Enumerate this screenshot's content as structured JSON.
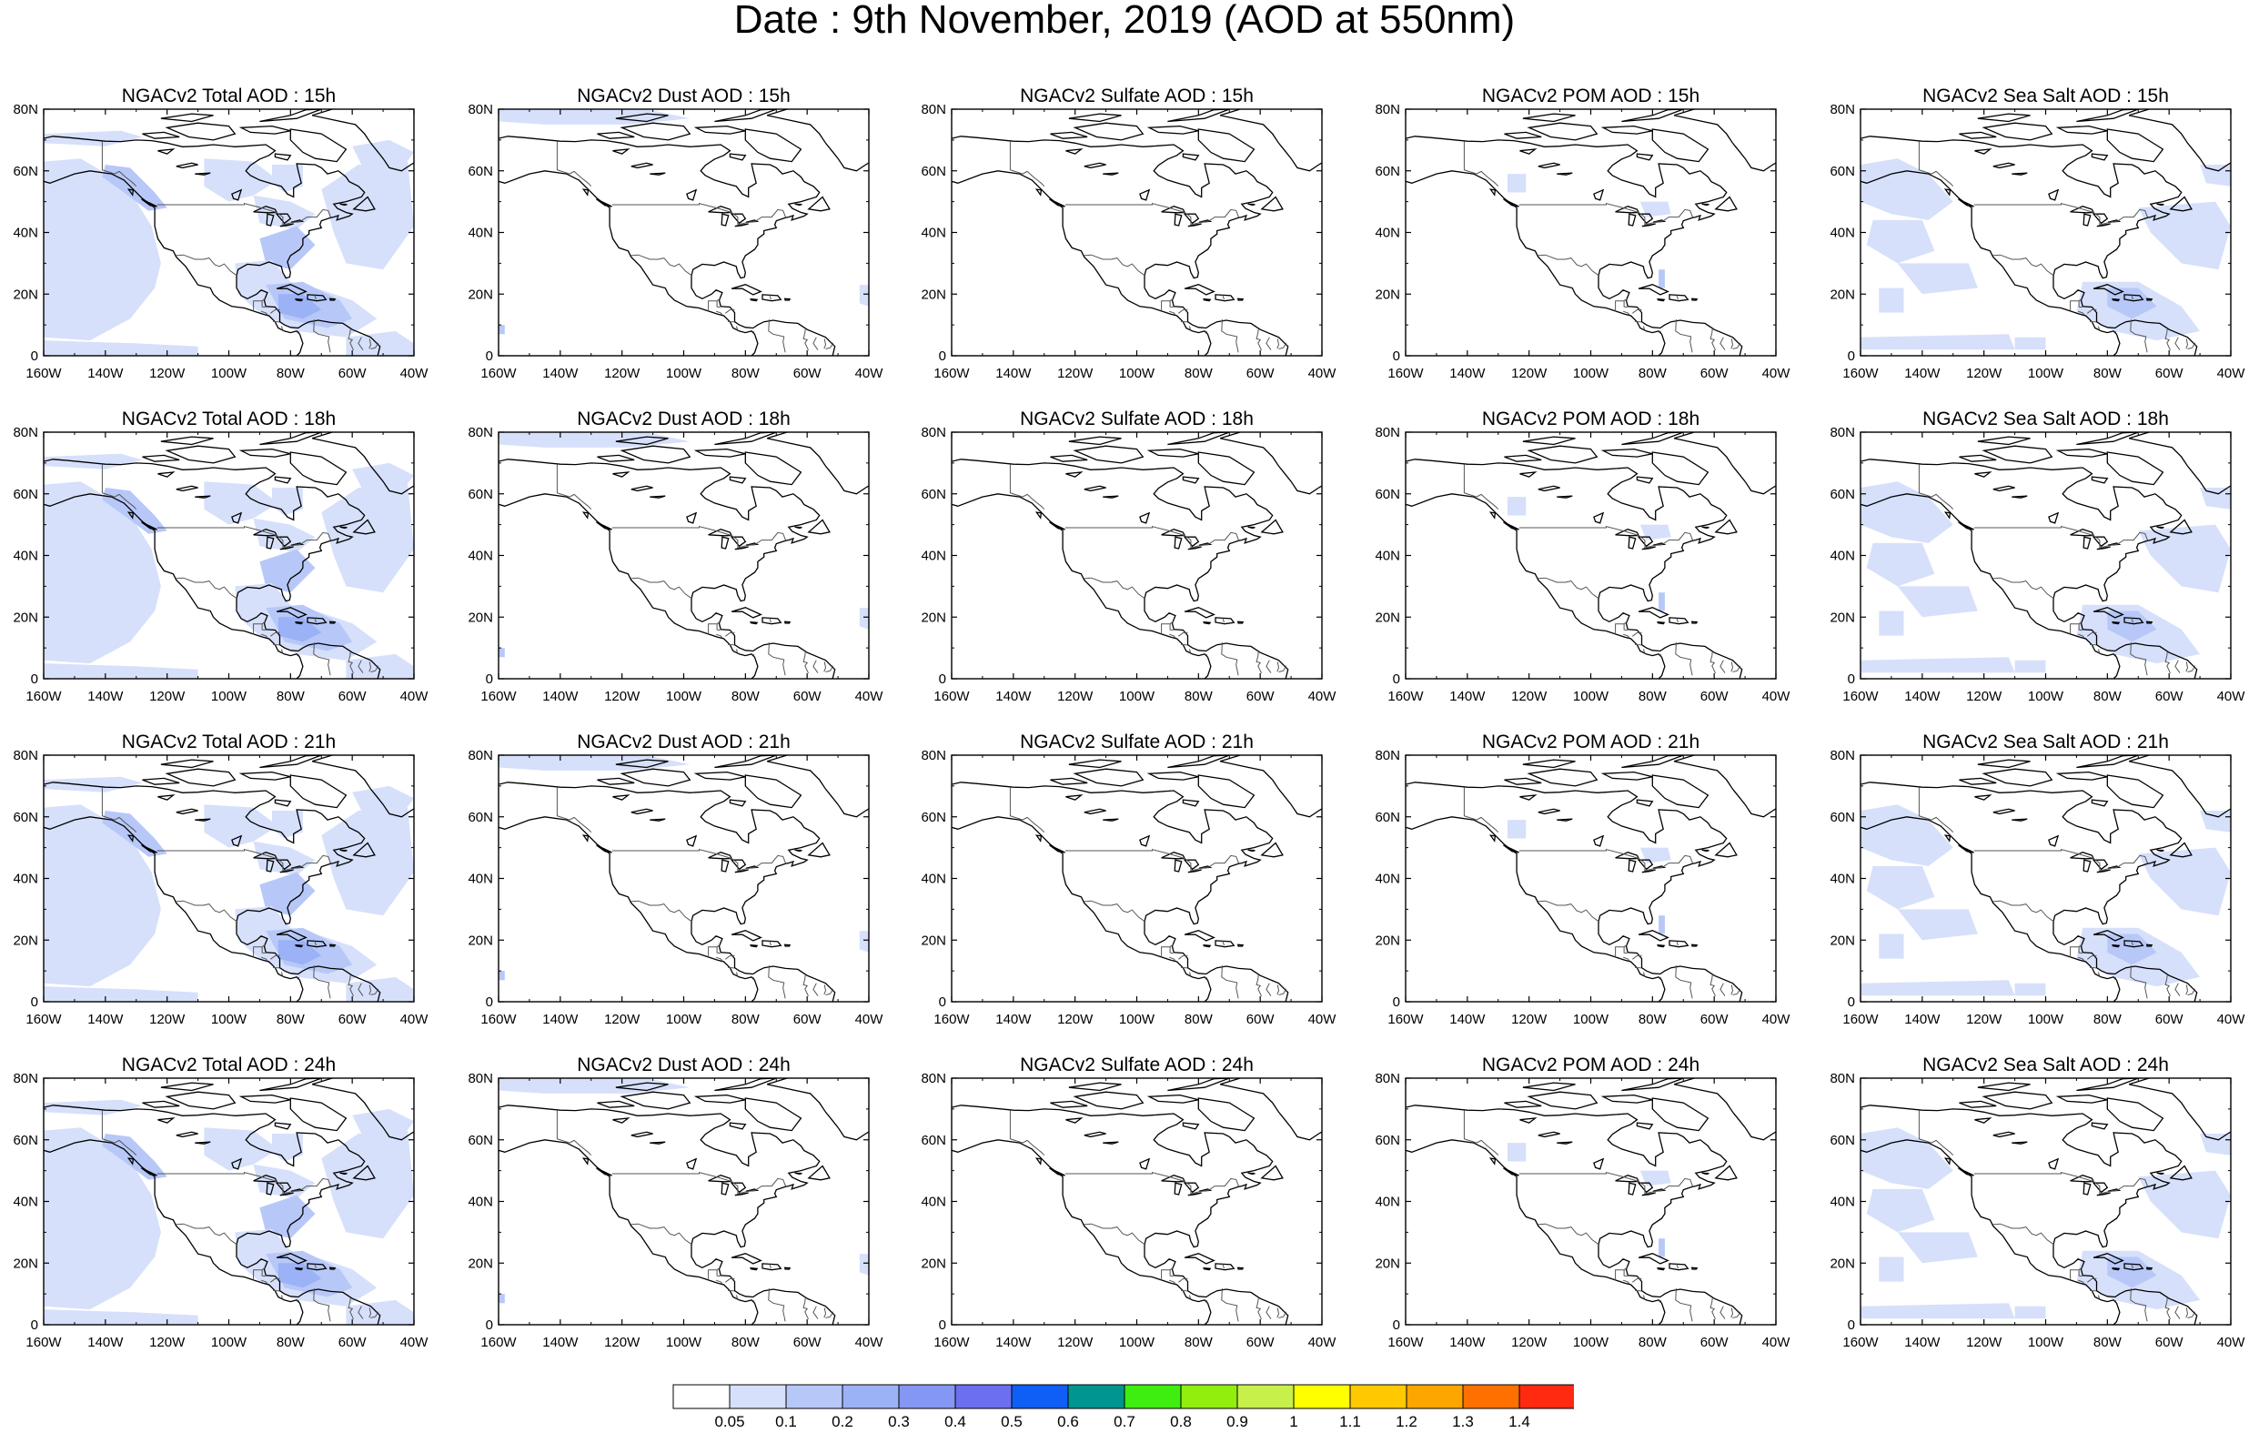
{
  "title": "Date : 9th November, 2019 (AOD at 550nm)",
  "lat_ticks": [
    "80N",
    "60N",
    "40N",
    "20N",
    "0"
  ],
  "lon_ticks": [
    "160W",
    "140W",
    "120W",
    "100W",
    "80W",
    "60W",
    "40W"
  ],
  "panels": [
    {
      "title": "NGACv2 Total AOD : 15h",
      "species": "total",
      "hour": 15
    },
    {
      "title": "NGACv2 Dust AOD : 15h",
      "species": "dust",
      "hour": 15
    },
    {
      "title": "NGACv2 Sulfate AOD : 15h",
      "species": "sulfate",
      "hour": 15
    },
    {
      "title": "NGACv2 POM AOD : 15h",
      "species": "pom",
      "hour": 15
    },
    {
      "title": "NGACv2 Sea Salt AOD : 15h",
      "species": "seasalt",
      "hour": 15
    },
    {
      "title": "NGACv2 Total AOD : 18h",
      "species": "total",
      "hour": 18
    },
    {
      "title": "NGACv2 Dust AOD : 18h",
      "species": "dust",
      "hour": 18
    },
    {
      "title": "NGACv2 Sulfate AOD : 18h",
      "species": "sulfate",
      "hour": 18
    },
    {
      "title": "NGACv2 POM AOD : 18h",
      "species": "pom",
      "hour": 18
    },
    {
      "title": "NGACv2 Sea Salt AOD : 18h",
      "species": "seasalt",
      "hour": 18
    },
    {
      "title": "NGACv2 Total AOD : 21h",
      "species": "total",
      "hour": 21
    },
    {
      "title": "NGACv2 Dust AOD : 21h",
      "species": "dust",
      "hour": 21
    },
    {
      "title": "NGACv2 Sulfate AOD : 21h",
      "species": "sulfate",
      "hour": 21
    },
    {
      "title": "NGACv2 POM AOD : 21h",
      "species": "pom",
      "hour": 21
    },
    {
      "title": "NGACv2 Sea Salt AOD : 21h",
      "species": "seasalt",
      "hour": 21
    },
    {
      "title": "NGACv2 Total AOD : 24h",
      "species": "total",
      "hour": 24
    },
    {
      "title": "NGACv2 Dust AOD : 24h",
      "species": "dust",
      "hour": 24
    },
    {
      "title": "NGACv2 Sulfate AOD : 24h",
      "species": "sulfate",
      "hour": 24
    },
    {
      "title": "NGACv2 POM AOD : 24h",
      "species": "pom",
      "hour": 24
    },
    {
      "title": "NGACv2 Sea Salt  AOD : 24h",
      "species": "seasalt",
      "hour": 24
    }
  ],
  "colorbar": {
    "colors": [
      "#ffffff",
      "#d6e0fb",
      "#b7c8f8",
      "#9bb2f6",
      "#8497f3",
      "#6b6ff0",
      "#0f5ef5",
      "#00968f",
      "#3fee10",
      "#91ee0f",
      "#c8f04a",
      "#ffff00",
      "#ffc800",
      "#ffa500",
      "#ff7000",
      "#ff2a10"
    ],
    "labels": [
      "0.05",
      "0.1",
      "0.2",
      "0.3",
      "0.4",
      "0.5",
      "0.6",
      "0.7",
      "0.8",
      "0.9",
      "1",
      "1.1",
      "1.2",
      "1.3",
      "1.4"
    ]
  },
  "colors": {
    "low_aod": "#d6e0fb",
    "mid_aod": "#b7c8f8",
    "high_aod": "#9bb2f6",
    "coastline": "#000000"
  }
}
